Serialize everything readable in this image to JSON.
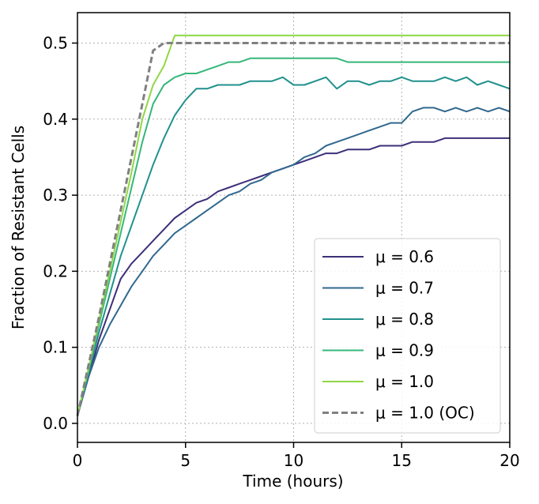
{
  "chart_data": {
    "type": "line",
    "xlabel": "Time (hours)",
    "ylabel": "Fraction of Resistant Cells",
    "xlim": [
      0,
      20
    ],
    "ylim": [
      -0.025,
      0.54
    ],
    "xticks": [
      0,
      5,
      10,
      15,
      20
    ],
    "yticks": [
      {
        "value": 0,
        "label": "0.0"
      },
      0.1,
      0.2,
      0.3,
      0.4,
      0.5
    ],
    "grid": true,
    "legend": "lower right",
    "x": [
      0,
      0.5,
      1,
      1.5,
      2,
      2.5,
      3,
      3.5,
      4,
      4.5,
      5,
      5.5,
      6,
      6.5,
      7,
      7.5,
      8,
      8.5,
      9,
      9.5,
      10,
      10.5,
      11,
      11.5,
      12,
      12.5,
      13,
      13.5,
      14,
      14.5,
      15,
      15.5,
      16,
      16.5,
      17,
      17.5,
      18,
      18.5,
      19,
      19.5,
      20
    ],
    "series": [
      {
        "name": "μ = 0.6",
        "color": "#3e2f7a",
        "dashed": false,
        "values": [
          0.01,
          0.06,
          0.11,
          0.15,
          0.19,
          0.21,
          0.225,
          0.24,
          0.255,
          0.27,
          0.28,
          0.29,
          0.295,
          0.305,
          0.31,
          0.315,
          0.32,
          0.325,
          0.33,
          0.335,
          0.34,
          0.345,
          0.35,
          0.355,
          0.355,
          0.36,
          0.36,
          0.36,
          0.365,
          0.365,
          0.365,
          0.37,
          0.37,
          0.37,
          0.375,
          0.375,
          0.375,
          0.375,
          0.375,
          0.375,
          0.375
        ]
      },
      {
        "name": "μ = 0.7",
        "color": "#31688e",
        "dashed": false,
        "values": [
          0.01,
          0.06,
          0.1,
          0.13,
          0.155,
          0.18,
          0.2,
          0.22,
          0.235,
          0.25,
          0.26,
          0.27,
          0.28,
          0.29,
          0.3,
          0.305,
          0.315,
          0.32,
          0.33,
          0.335,
          0.34,
          0.35,
          0.355,
          0.365,
          0.37,
          0.375,
          0.38,
          0.385,
          0.39,
          0.395,
          0.395,
          0.41,
          0.415,
          0.415,
          0.41,
          0.415,
          0.41,
          0.415,
          0.41,
          0.415,
          0.41
        ]
      },
      {
        "name": "μ = 0.8",
        "color": "#21918c",
        "dashed": false,
        "values": [
          0.01,
          0.065,
          0.12,
          0.17,
          0.22,
          0.26,
          0.3,
          0.34,
          0.375,
          0.405,
          0.425,
          0.44,
          0.44,
          0.445,
          0.445,
          0.445,
          0.45,
          0.45,
          0.45,
          0.455,
          0.445,
          0.445,
          0.45,
          0.455,
          0.44,
          0.45,
          0.45,
          0.445,
          0.45,
          0.45,
          0.455,
          0.45,
          0.45,
          0.45,
          0.455,
          0.45,
          0.455,
          0.445,
          0.45,
          0.445,
          0.44
        ]
      },
      {
        "name": "μ = 0.9",
        "color": "#35b779",
        "dashed": false,
        "values": [
          0.01,
          0.07,
          0.13,
          0.19,
          0.25,
          0.31,
          0.37,
          0.42,
          0.445,
          0.455,
          0.46,
          0.46,
          0.465,
          0.47,
          0.475,
          0.475,
          0.48,
          0.48,
          0.48,
          0.48,
          0.48,
          0.48,
          0.48,
          0.48,
          0.48,
          0.475,
          0.475,
          0.475,
          0.475,
          0.475,
          0.475,
          0.475,
          0.475,
          0.475,
          0.475,
          0.475,
          0.475,
          0.475,
          0.475,
          0.475,
          0.475
        ]
      },
      {
        "name": "μ = 1.0",
        "color": "#90d743",
        "dashed": false,
        "values": [
          0.01,
          0.07,
          0.135,
          0.2,
          0.265,
          0.33,
          0.4,
          0.445,
          0.47,
          0.51,
          0.51,
          0.51,
          0.51,
          0.51,
          0.51,
          0.51,
          0.51,
          0.51,
          0.51,
          0.51,
          0.51,
          0.51,
          0.51,
          0.51,
          0.51,
          0.51,
          0.51,
          0.51,
          0.51,
          0.51,
          0.51,
          0.51,
          0.51,
          0.51,
          0.51,
          0.51,
          0.51,
          0.51,
          0.51,
          0.51,
          0.51
        ]
      },
      {
        "name": "μ = 1.0 (OC)",
        "color": "#808080",
        "dashed": true,
        "values": [
          0.01,
          0.075,
          0.14,
          0.21,
          0.28,
          0.35,
          0.42,
          0.49,
          0.5,
          0.5,
          0.5,
          0.5,
          0.5,
          0.5,
          0.5,
          0.5,
          0.5,
          0.5,
          0.5,
          0.5,
          0.5,
          0.5,
          0.5,
          0.5,
          0.5,
          0.5,
          0.5,
          0.5,
          0.5,
          0.5,
          0.5,
          0.5,
          0.5,
          0.5,
          0.5,
          0.5,
          0.5,
          0.5,
          0.5,
          0.5,
          0.5
        ]
      }
    ]
  }
}
